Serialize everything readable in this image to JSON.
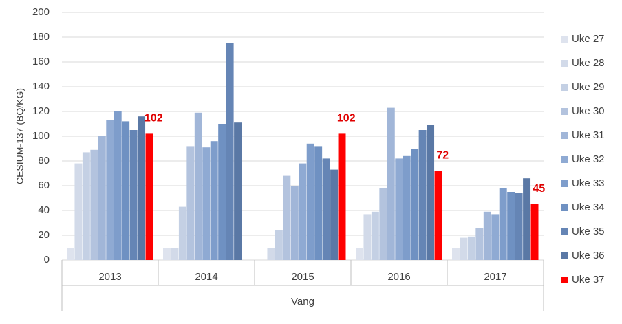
{
  "chart_data": {
    "type": "bar",
    "y_label": "CESIUM-137 (BQ/KG)",
    "group_label": "Vang",
    "categories": [
      "2013",
      "2014",
      "2015",
      "2016",
      "2017"
    ],
    "ylim": [
      0,
      200
    ],
    "yticks": [
      0,
      20,
      40,
      60,
      80,
      100,
      120,
      140,
      160,
      180,
      200
    ],
    "grid": true,
    "series": [
      {
        "name": "Uke 27",
        "color": "#dee3ee",
        "values": [
          10,
          10,
          null,
          10,
          10
        ]
      },
      {
        "name": "Uke 28",
        "color": "#d2dae9",
        "values": [
          78,
          10,
          10,
          37,
          18
        ]
      },
      {
        "name": "Uke 29",
        "color": "#c4d0e4",
        "values": [
          87,
          43,
          24,
          39,
          19
        ]
      },
      {
        "name": "Uke 30",
        "color": "#b3c3de",
        "values": [
          89,
          92,
          68,
          58,
          26
        ]
      },
      {
        "name": "Uke 31",
        "color": "#a1b6d8",
        "values": [
          100,
          119,
          60,
          123,
          39
        ]
      },
      {
        "name": "Uke 32",
        "color": "#8faad3",
        "values": [
          113,
          91,
          78,
          82,
          37
        ]
      },
      {
        "name": "Uke 33",
        "color": "#7e9dcb",
        "values": [
          120,
          96,
          94,
          84,
          58
        ]
      },
      {
        "name": "Uke 34",
        "color": "#6f91c2",
        "values": [
          112,
          110,
          92,
          90,
          55
        ]
      },
      {
        "name": "Uke 35",
        "color": "#6585b5",
        "values": [
          105,
          175,
          82,
          105,
          54
        ]
      },
      {
        "name": "Uke 36",
        "color": "#5a78a5",
        "values": [
          116,
          111,
          73,
          109,
          66
        ]
      },
      {
        "name": "Uke 37",
        "color": "#ff0000",
        "values": [
          102,
          null,
          102,
          72,
          45
        ],
        "data_labels": true,
        "label_color": "#e00000"
      }
    ]
  }
}
